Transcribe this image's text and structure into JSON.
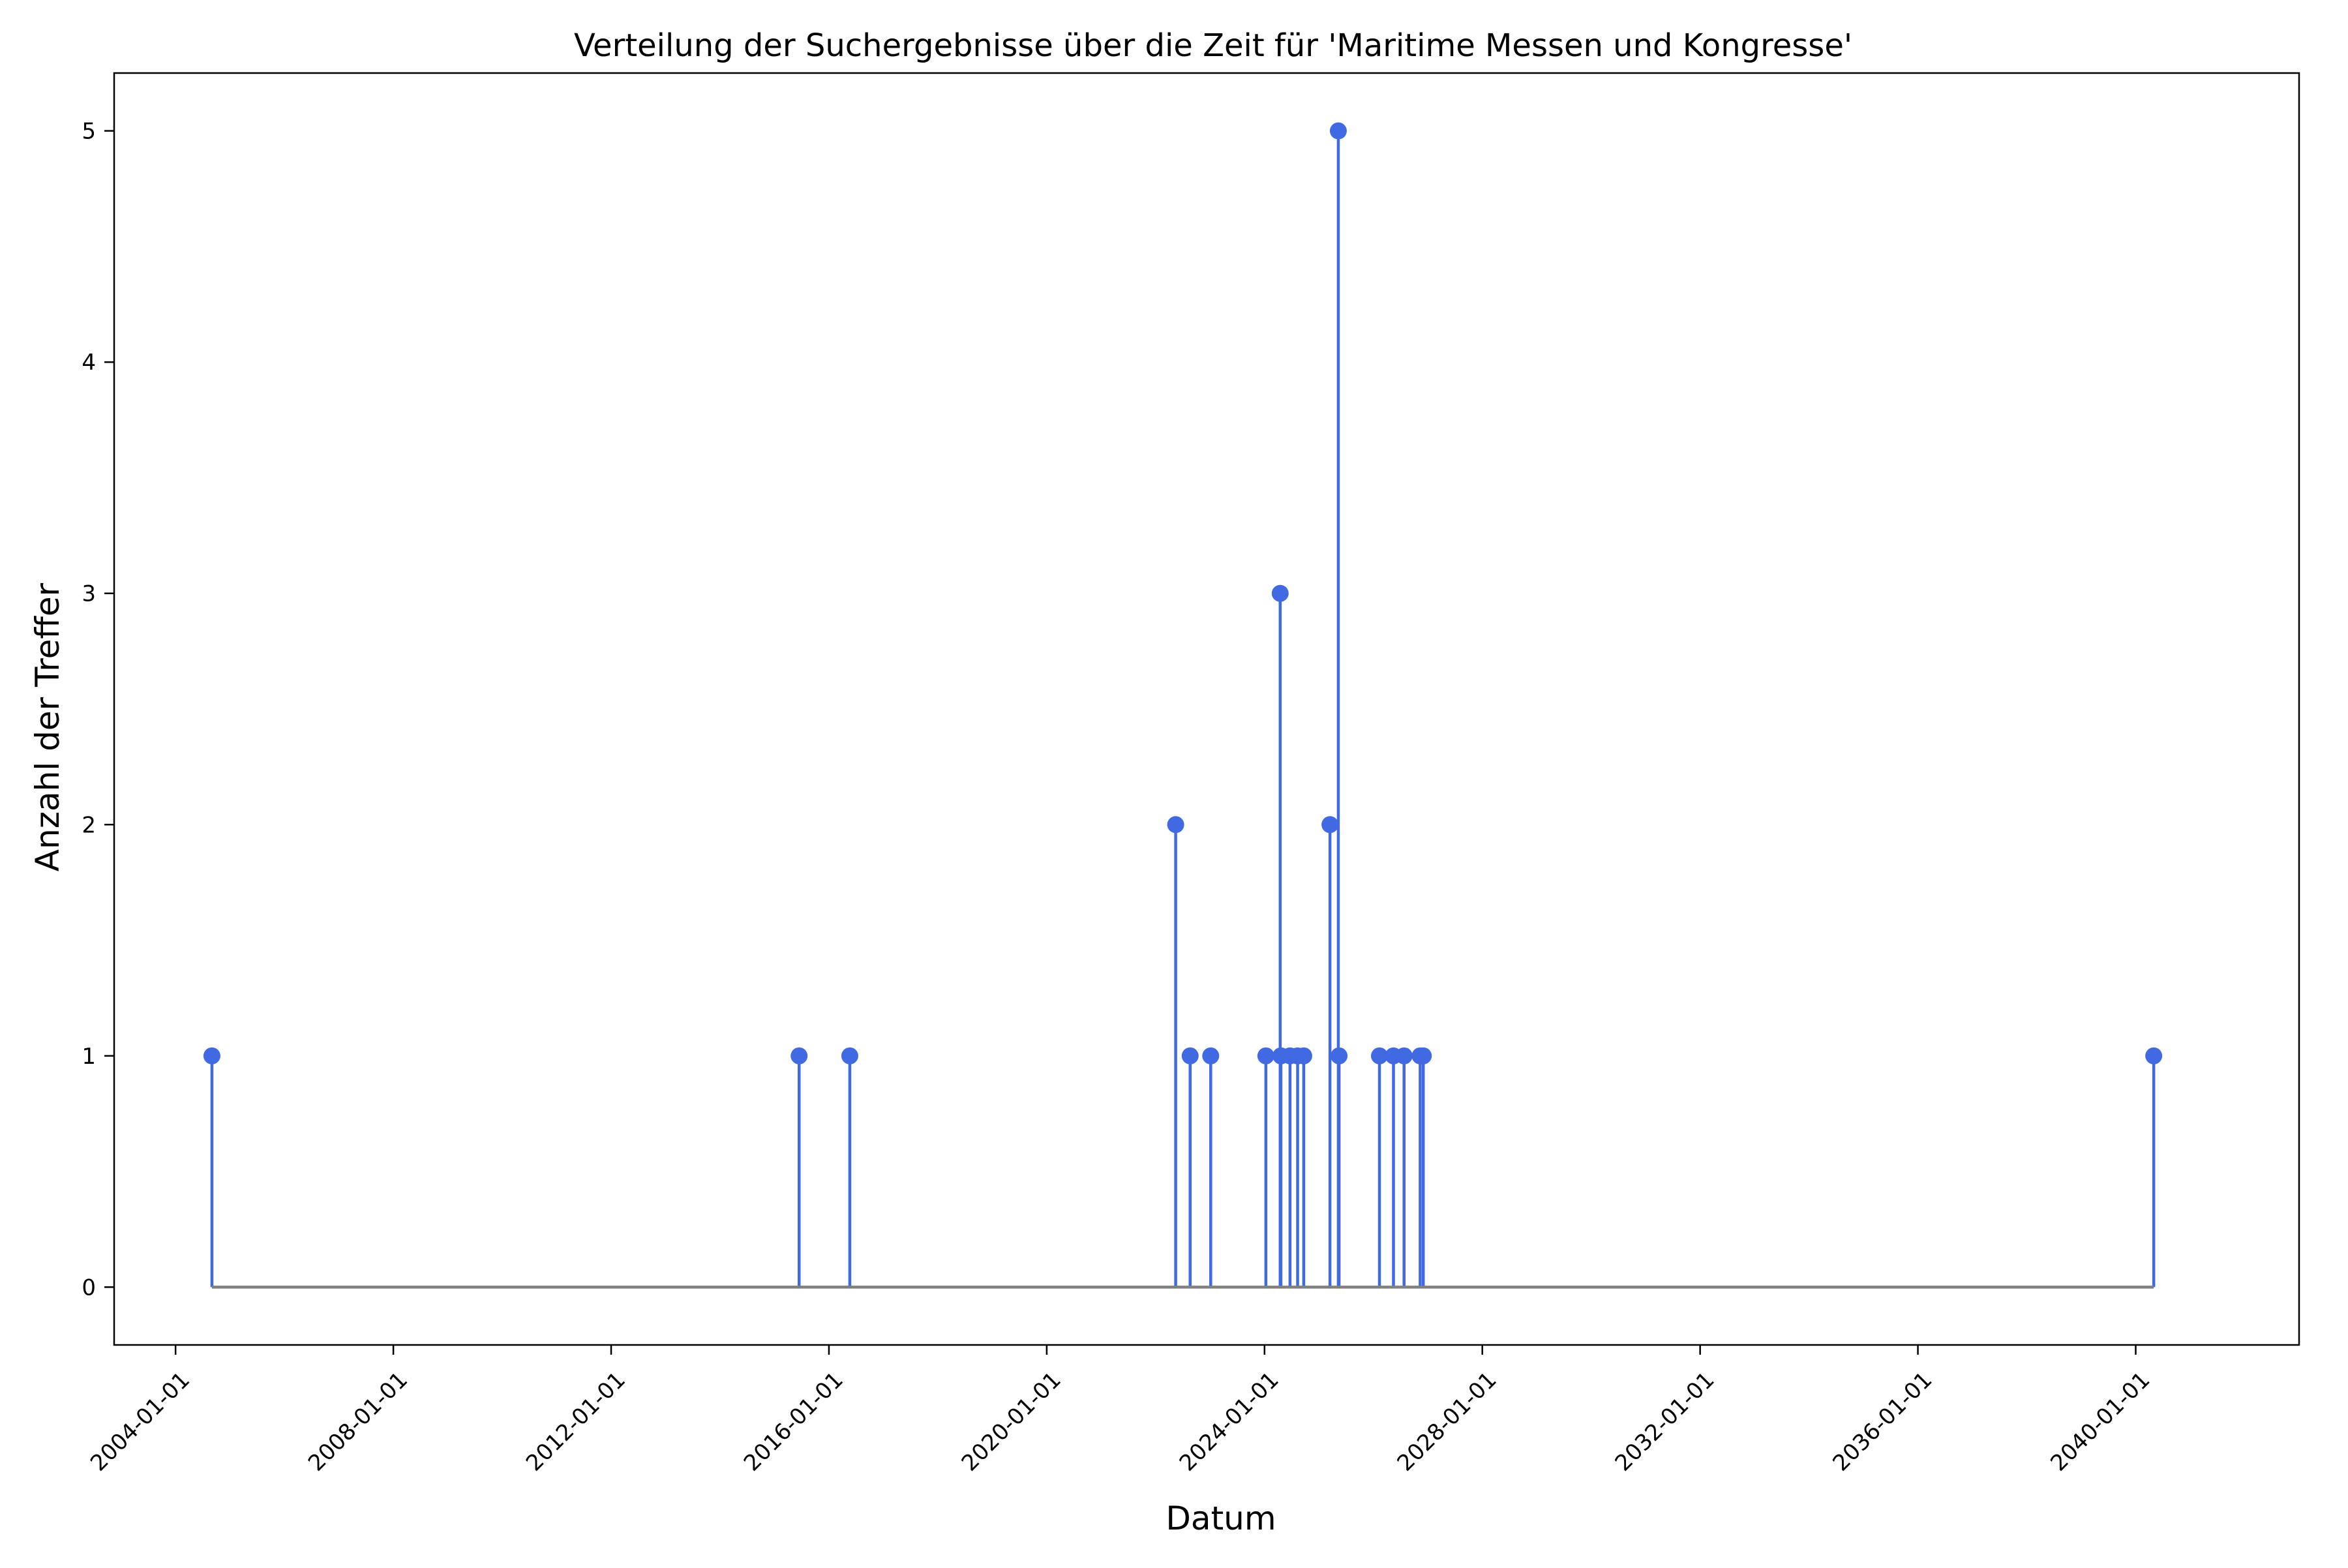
{
  "chart_data": {
    "type": "stem",
    "title": "Verteilung der Suchergebnisse über die Zeit für 'Maritime Messen und Kongresse'",
    "xlabel": "Datum",
    "ylabel": "Anzahl der Treffer",
    "xlim": [
      "2002-11-15",
      "2043-01-01"
    ],
    "ylim": [
      -0.25,
      5.25
    ],
    "x_ticks": [
      "2004-01-01",
      "2008-01-01",
      "2012-01-01",
      "2016-01-01",
      "2020-01-01",
      "2024-01-01",
      "2028-01-01",
      "2032-01-01",
      "2036-01-01",
      "2040-01-01"
    ],
    "y_ticks": [
      0,
      1,
      2,
      3,
      4,
      5
    ],
    "grid": false,
    "legend": "none",
    "marker_color": "#4169e1",
    "baseline_color": "#808080",
    "points": [
      {
        "date": "2004-09-01",
        "count": 1
      },
      {
        "date": "2015-06-15",
        "count": 1
      },
      {
        "date": "2016-05-20",
        "count": 1
      },
      {
        "date": "2022-05-15",
        "count": 2
      },
      {
        "date": "2022-08-20",
        "count": 1
      },
      {
        "date": "2023-01-05",
        "count": 1
      },
      {
        "date": "2024-01-10",
        "count": 1
      },
      {
        "date": "2024-04-15",
        "count": 3
      },
      {
        "date": "2024-04-20",
        "count": 1
      },
      {
        "date": "2024-06-20",
        "count": 1
      },
      {
        "date": "2024-08-10",
        "count": 1
      },
      {
        "date": "2024-09-20",
        "count": 1
      },
      {
        "date": "2025-03-15",
        "count": 2
      },
      {
        "date": "2025-05-10",
        "count": 5
      },
      {
        "date": "2025-05-15",
        "count": 1
      },
      {
        "date": "2026-02-10",
        "count": 1
      },
      {
        "date": "2026-05-15",
        "count": 1
      },
      {
        "date": "2026-07-25",
        "count": 1
      },
      {
        "date": "2026-11-10",
        "count": 1
      },
      {
        "date": "2026-12-01",
        "count": 1
      },
      {
        "date": "2040-05-01",
        "count": 1
      }
    ]
  }
}
